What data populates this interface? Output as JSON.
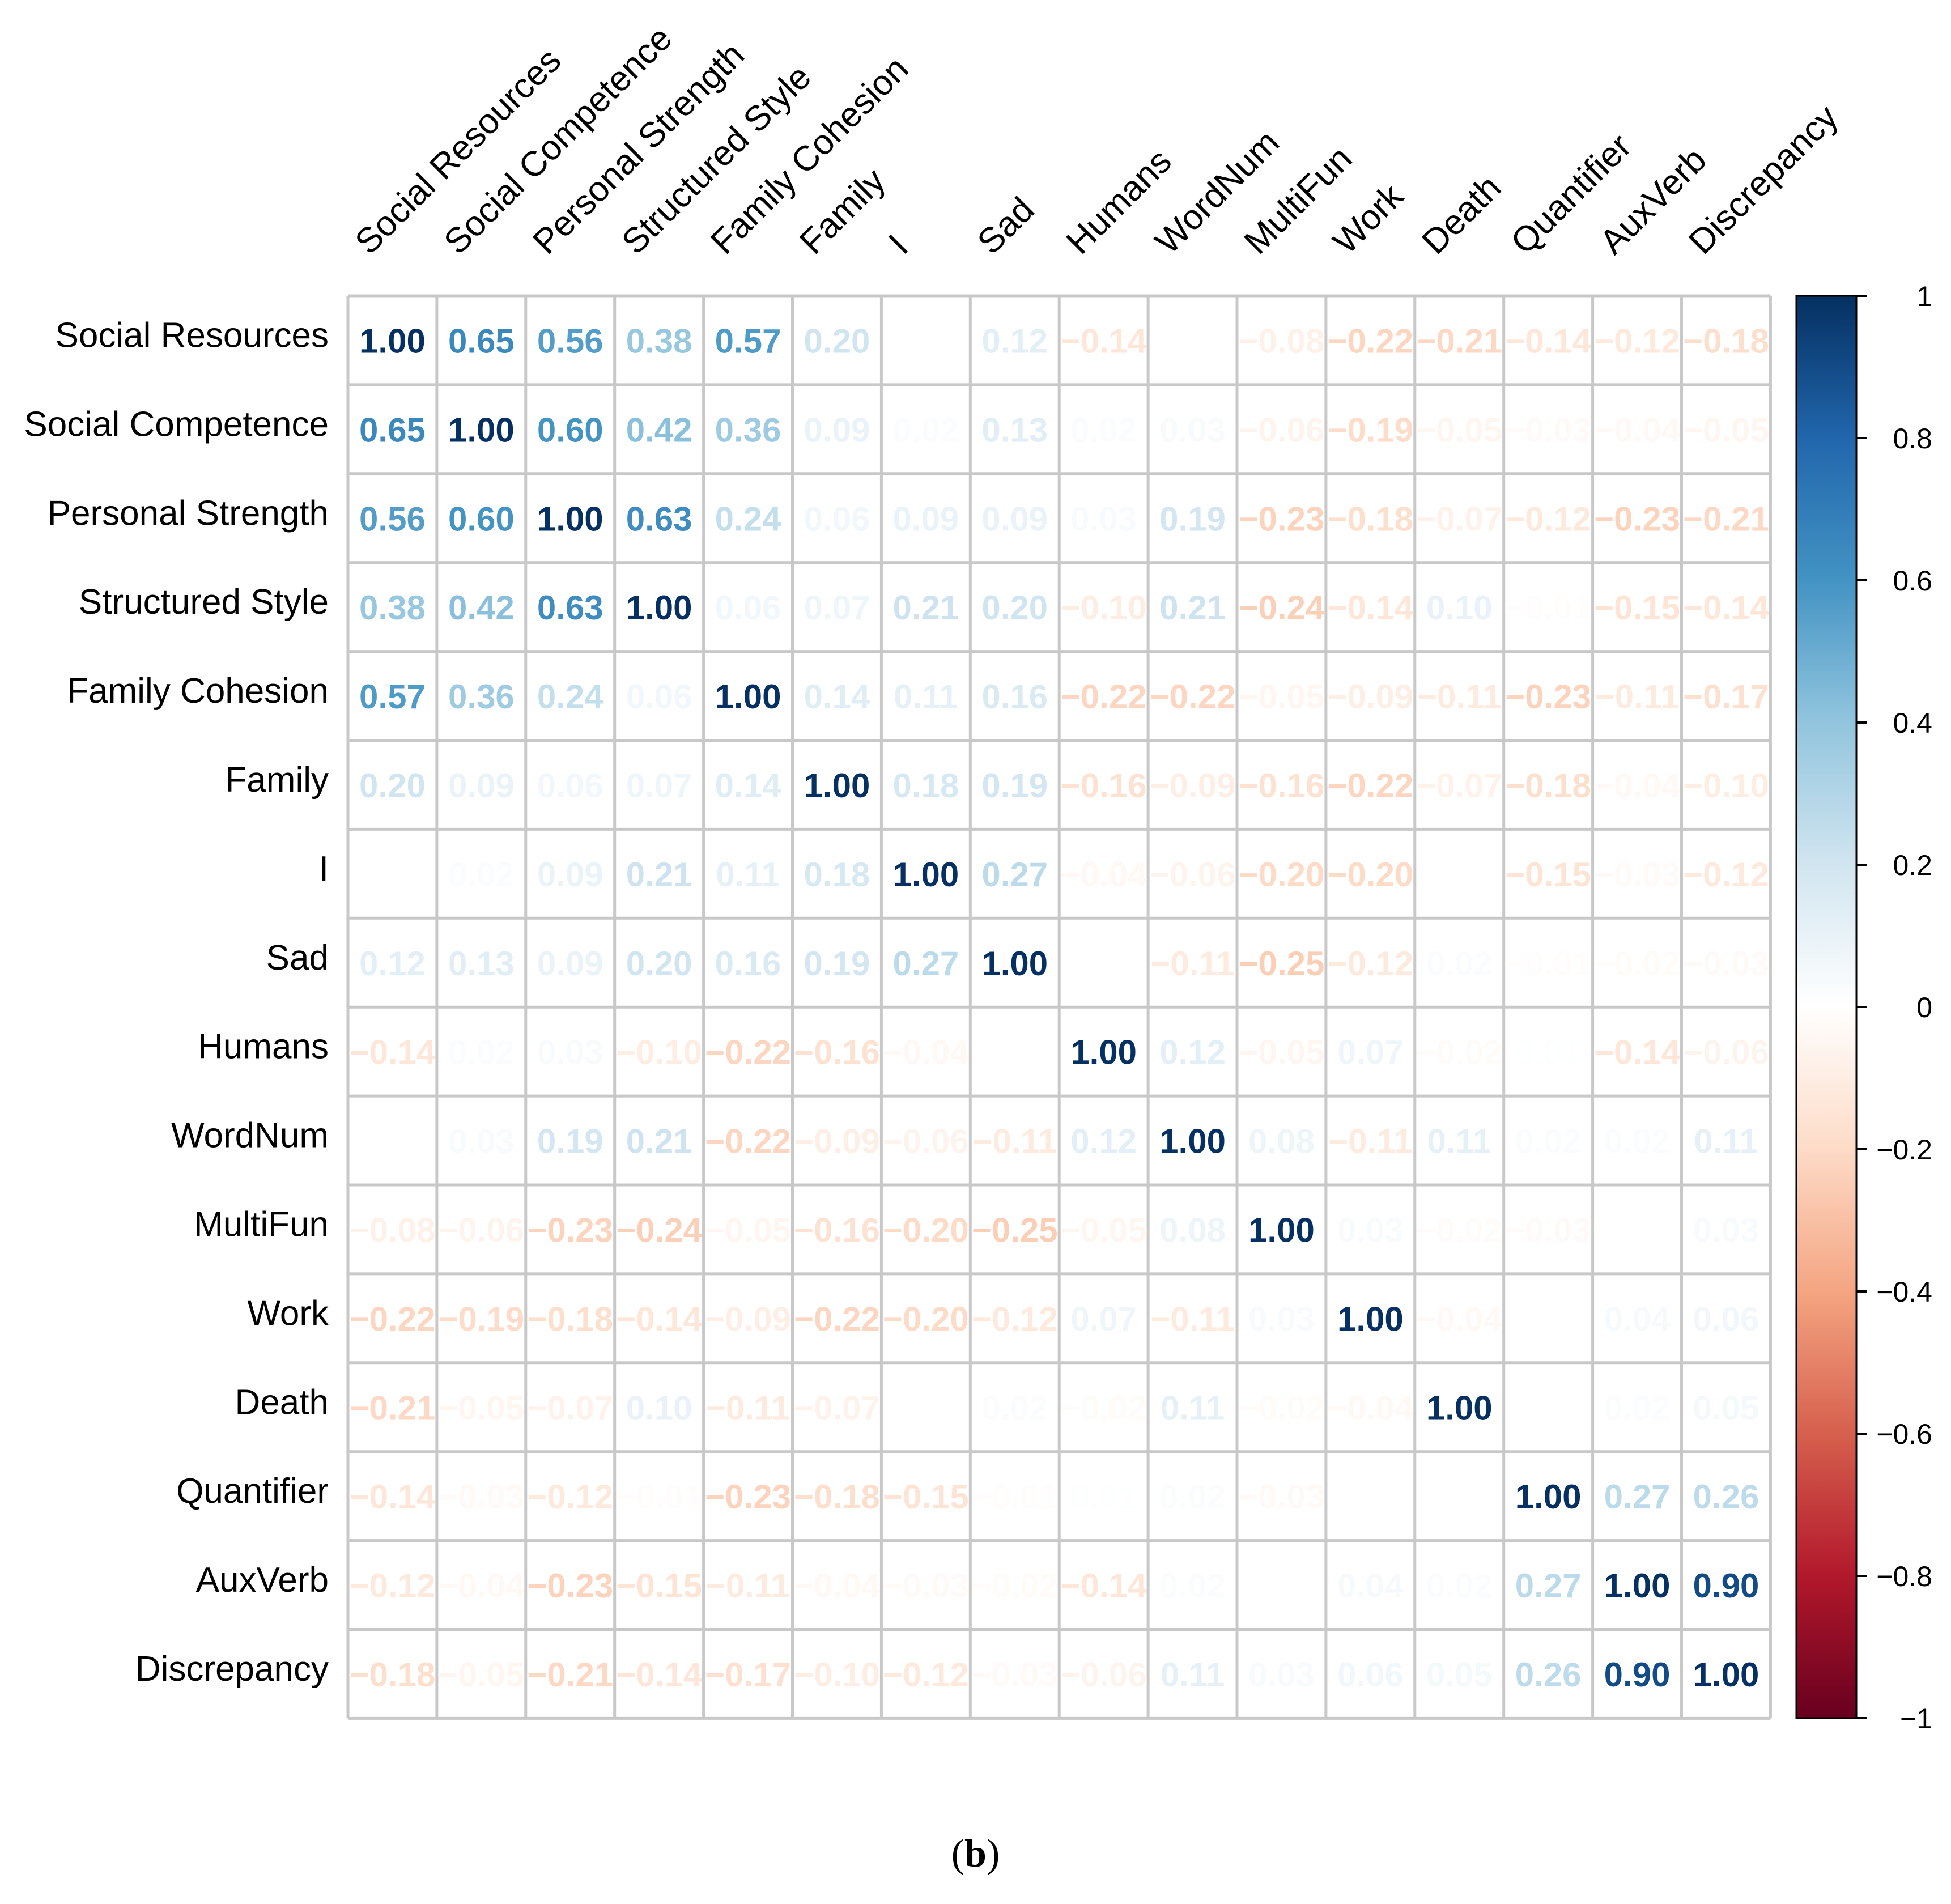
{
  "chart_data": {
    "type": "heatmap",
    "variables": [
      "Social Resources",
      "Social Competence",
      "Personal Strength",
      "Structured Style",
      "Family Cohesion",
      "Family",
      "I",
      "Sad",
      "Humans",
      "WordNum",
      "MultiFun",
      "Work",
      "Death",
      "Quantifier",
      "AuxVerb",
      "Discrepancy"
    ],
    "matrix": [
      [
        1.0,
        0.65,
        0.56,
        0.38,
        0.57,
        0.2,
        0.0,
        0.12,
        -0.14,
        0.0,
        -0.08,
        -0.22,
        -0.21,
        -0.14,
        -0.12,
        -0.18
      ],
      [
        0.65,
        1.0,
        0.6,
        0.42,
        0.36,
        0.09,
        0.02,
        0.13,
        0.02,
        0.03,
        -0.06,
        -0.19,
        -0.05,
        -0.03,
        -0.04,
        -0.05
      ],
      [
        0.56,
        0.6,
        1.0,
        0.63,
        0.24,
        0.06,
        0.09,
        0.09,
        0.03,
        0.19,
        -0.23,
        -0.18,
        -0.07,
        -0.12,
        -0.23,
        -0.21
      ],
      [
        0.38,
        0.42,
        0.63,
        1.0,
        0.06,
        0.07,
        0.21,
        0.2,
        -0.1,
        0.21,
        -0.24,
        -0.14,
        0.1,
        -0.01,
        -0.15,
        -0.14
      ],
      [
        0.57,
        0.36,
        0.24,
        0.06,
        1.0,
        0.14,
        0.11,
        0.16,
        -0.22,
        -0.22,
        -0.05,
        -0.09,
        -0.11,
        -0.23,
        -0.11,
        -0.17
      ],
      [
        0.2,
        0.09,
        0.06,
        0.07,
        0.14,
        1.0,
        0.18,
        0.19,
        -0.16,
        -0.09,
        -0.16,
        -0.22,
        -0.07,
        -0.18,
        -0.04,
        -0.1
      ],
      [
        0.0,
        0.02,
        0.09,
        0.21,
        0.11,
        0.18,
        1.0,
        0.27,
        -0.04,
        -0.06,
        -0.2,
        -0.2,
        0.0,
        -0.15,
        -0.03,
        -0.12
      ],
      [
        0.12,
        0.13,
        0.09,
        0.2,
        0.16,
        0.19,
        0.27,
        1.0,
        0.0,
        -0.11,
        -0.25,
        -0.12,
        0.02,
        -0.01,
        -0.02,
        -0.03
      ],
      [
        -0.14,
        0.02,
        0.03,
        -0.1,
        -0.22,
        -0.16,
        -0.04,
        0.0,
        1.0,
        0.12,
        -0.05,
        0.07,
        -0.02,
        0.01,
        -0.14,
        -0.06
      ],
      [
        0.0,
        0.03,
        0.19,
        0.21,
        -0.22,
        -0.09,
        -0.06,
        -0.11,
        0.12,
        1.0,
        0.08,
        -0.11,
        0.11,
        0.02,
        0.02,
        0.11
      ],
      [
        -0.08,
        -0.06,
        -0.23,
        -0.24,
        -0.05,
        -0.16,
        -0.2,
        -0.25,
        -0.05,
        0.08,
        1.0,
        0.03,
        -0.02,
        -0.03,
        0.0,
        0.03
      ],
      [
        -0.22,
        -0.19,
        -0.18,
        -0.14,
        -0.09,
        -0.22,
        -0.2,
        -0.12,
        0.07,
        -0.11,
        0.03,
        1.0,
        -0.04,
        0.0,
        0.04,
        0.06
      ],
      [
        -0.21,
        -0.05,
        -0.07,
        0.1,
        -0.11,
        -0.07,
        0.0,
        0.02,
        -0.02,
        0.11,
        -0.02,
        -0.04,
        1.0,
        0.0,
        0.02,
        0.05
      ],
      [
        -0.14,
        -0.03,
        -0.12,
        -0.01,
        -0.23,
        -0.18,
        -0.15,
        -0.01,
        0.01,
        0.02,
        -0.03,
        0.0,
        0.0,
        1.0,
        0.27,
        0.26
      ],
      [
        -0.12,
        -0.04,
        -0.23,
        -0.15,
        -0.11,
        -0.04,
        -0.03,
        -0.02,
        -0.14,
        0.02,
        0.0,
        0.04,
        0.02,
        0.27,
        1.0,
        0.9
      ],
      [
        -0.18,
        -0.05,
        -0.21,
        -0.14,
        -0.17,
        -0.1,
        -0.12,
        -0.03,
        -0.06,
        0.11,
        0.03,
        0.06,
        0.05,
        0.26,
        0.9,
        1.0
      ]
    ],
    "colorbar": {
      "range": [
        -1,
        1
      ],
      "ticks": [
        "1",
        "0.8",
        "0.6",
        "0.4",
        "0.2",
        "0",
        "−0.2",
        "−0.4",
        "−0.6",
        "−0.8",
        "−1"
      ],
      "tick_values": [
        1,
        0.8,
        0.6,
        0.4,
        0.2,
        0,
        -0.2,
        -0.4,
        -0.6,
        -0.8,
        -1
      ],
      "colors": [
        "#67001f",
        "#b2182b",
        "#d6604d",
        "#f4a582",
        "#fddbc7",
        "#ffffff",
        "#d1e5f0",
        "#92c5de",
        "#4393c3",
        "#2166ac",
        "#053061"
      ]
    }
  },
  "caption": {
    "open": "(",
    "label": "b",
    "close": ")"
  }
}
